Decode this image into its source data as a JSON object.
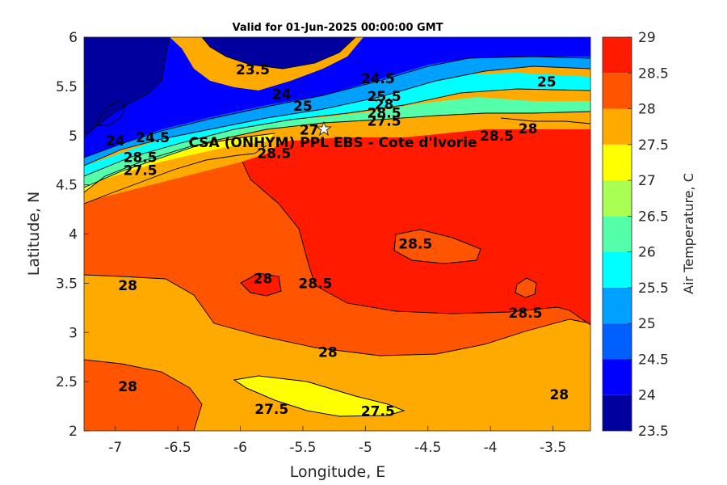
{
  "chart_data": {
    "type": "heatmap",
    "subtype": "filled-contour-map",
    "title": "Valid for 01-Jun-2025 00:00:00 GMT",
    "xlabel": "Longitude, E",
    "ylabel": "Latitude, N",
    "xlim": [
      -7.25,
      -3.2
    ],
    "ylim": [
      2,
      6
    ],
    "xticks": [
      "-7",
      "-6.5",
      "-6",
      "-5.5",
      "-5",
      "-4.5",
      "-4",
      "-3.5"
    ],
    "yticks": [
      "2",
      "2.5",
      "3",
      "3.5",
      "4",
      "4.5",
      "5",
      "5.5",
      "6"
    ],
    "colorbar": {
      "label": "Air Temperature, C",
      "range": [
        23.5,
        29
      ],
      "levels": [
        23.5,
        24,
        24.5,
        25,
        25.5,
        26,
        26.5,
        27,
        27.5,
        28,
        28.5,
        29
      ],
      "tick_labels": [
        "23.5",
        "24",
        "24.5",
        "25",
        "25.5",
        "26",
        "26.5",
        "27",
        "27.5",
        "28",
        "28.5",
        "29"
      ],
      "colors": [
        "#00009f",
        "#0000ff",
        "#005fff",
        "#00a0ff",
        "#00ffff",
        "#55ffaa",
        "#aaff55",
        "#ffff00",
        "#ffaa00",
        "#ff5500",
        "#ff1a00"
      ]
    },
    "site": {
      "name": "CSA (ONHYM) PPL EBS  - Cote d'Ivorie",
      "lon": -5.35,
      "lat": 5.05,
      "marker": "star"
    },
    "contour_labels": [
      {
        "text": "23.5",
        "lon": -5.9,
        "lat": 5.67
      },
      {
        "text": "24",
        "lon": -5.67,
        "lat": 5.42
      },
      {
        "text": "24",
        "lon": -7.0,
        "lat": 4.95
      },
      {
        "text": "24.5",
        "lon": -4.9,
        "lat": 5.58
      },
      {
        "text": "24.5",
        "lon": -6.7,
        "lat": 4.98
      },
      {
        "text": "25",
        "lon": -5.5,
        "lat": 5.3
      },
      {
        "text": "25",
        "lon": -3.55,
        "lat": 5.55
      },
      {
        "text": "25.5",
        "lon": -4.85,
        "lat": 5.4
      },
      {
        "text": "28",
        "lon": -4.85,
        "lat": 5.32
      },
      {
        "text": "28.5",
        "lon": -4.85,
        "lat": 5.23
      },
      {
        "text": "27.5",
        "lon": -4.85,
        "lat": 5.15
      },
      {
        "text": "27",
        "lon": -5.45,
        "lat": 5.06
      },
      {
        "text": "28.5",
        "lon": -5.73,
        "lat": 4.82
      },
      {
        "text": "28.5",
        "lon": -6.8,
        "lat": 4.78
      },
      {
        "text": "27.5",
        "lon": -6.8,
        "lat": 4.65
      },
      {
        "text": "28.5",
        "lon": -3.95,
        "lat": 5.0
      },
      {
        "text": "28",
        "lon": -3.7,
        "lat": 5.07
      },
      {
        "text": "28.5",
        "lon": -4.6,
        "lat": 3.9
      },
      {
        "text": "28",
        "lon": -5.82,
        "lat": 3.55
      },
      {
        "text": "28",
        "lon": -6.9,
        "lat": 3.48
      },
      {
        "text": "28.5",
        "lon": -5.4,
        "lat": 3.5
      },
      {
        "text": "28.5",
        "lon": -3.72,
        "lat": 3.2
      },
      {
        "text": "28",
        "lon": -5.3,
        "lat": 2.8
      },
      {
        "text": "28",
        "lon": -6.9,
        "lat": 2.45
      },
      {
        "text": "28",
        "lon": -3.45,
        "lat": 2.37
      },
      {
        "text": "27.5",
        "lon": -5.75,
        "lat": 2.22
      },
      {
        "text": "27.5",
        "lon": -4.9,
        "lat": 2.2
      }
    ]
  }
}
